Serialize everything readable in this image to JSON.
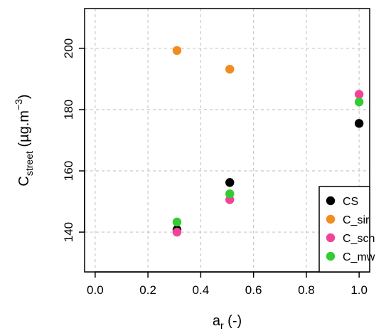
{
  "chart_data": {
    "type": "scatter",
    "xlabel": {
      "main": "a",
      "sub": "r",
      "rest": " (-)"
    },
    "ylabel": {
      "main": "C",
      "sub": "street",
      "rest": " (µg.m",
      "sup": "−3",
      "close": ")"
    },
    "xlim": [
      -0.04,
      1.04
    ],
    "ylim": [
      127,
      213
    ],
    "xticks": [
      0.0,
      0.2,
      0.4,
      0.6,
      0.8,
      1.0
    ],
    "xtick_labels": [
      "0.0",
      "0.2",
      "0.4",
      "0.6",
      "0.8",
      "1.0"
    ],
    "yticks": [
      140,
      160,
      180,
      200
    ],
    "ytick_labels": [
      "140",
      "160",
      "180",
      "200"
    ],
    "grid": true,
    "legend_position": "bottom-right",
    "series": [
      {
        "name": "CS",
        "color": "#000000",
        "x": [
          0.31,
          0.51,
          1.0
        ],
        "y": [
          140.8,
          156.2,
          175.5
        ]
      },
      {
        "name": "C_sir",
        "color": "#f28c1e",
        "x": [
          0.31,
          0.51
        ],
        "y": [
          199.3,
          193.2
        ]
      },
      {
        "name": "C_sch",
        "color": "#f0449a",
        "x": [
          0.31,
          0.51,
          1.0
        ],
        "y": [
          140.0,
          150.6,
          185.0
        ]
      },
      {
        "name": "C_mw",
        "color": "#33cc33",
        "x": [
          0.31,
          0.51,
          1.0
        ],
        "y": [
          143.3,
          152.5,
          182.5
        ]
      }
    ]
  }
}
